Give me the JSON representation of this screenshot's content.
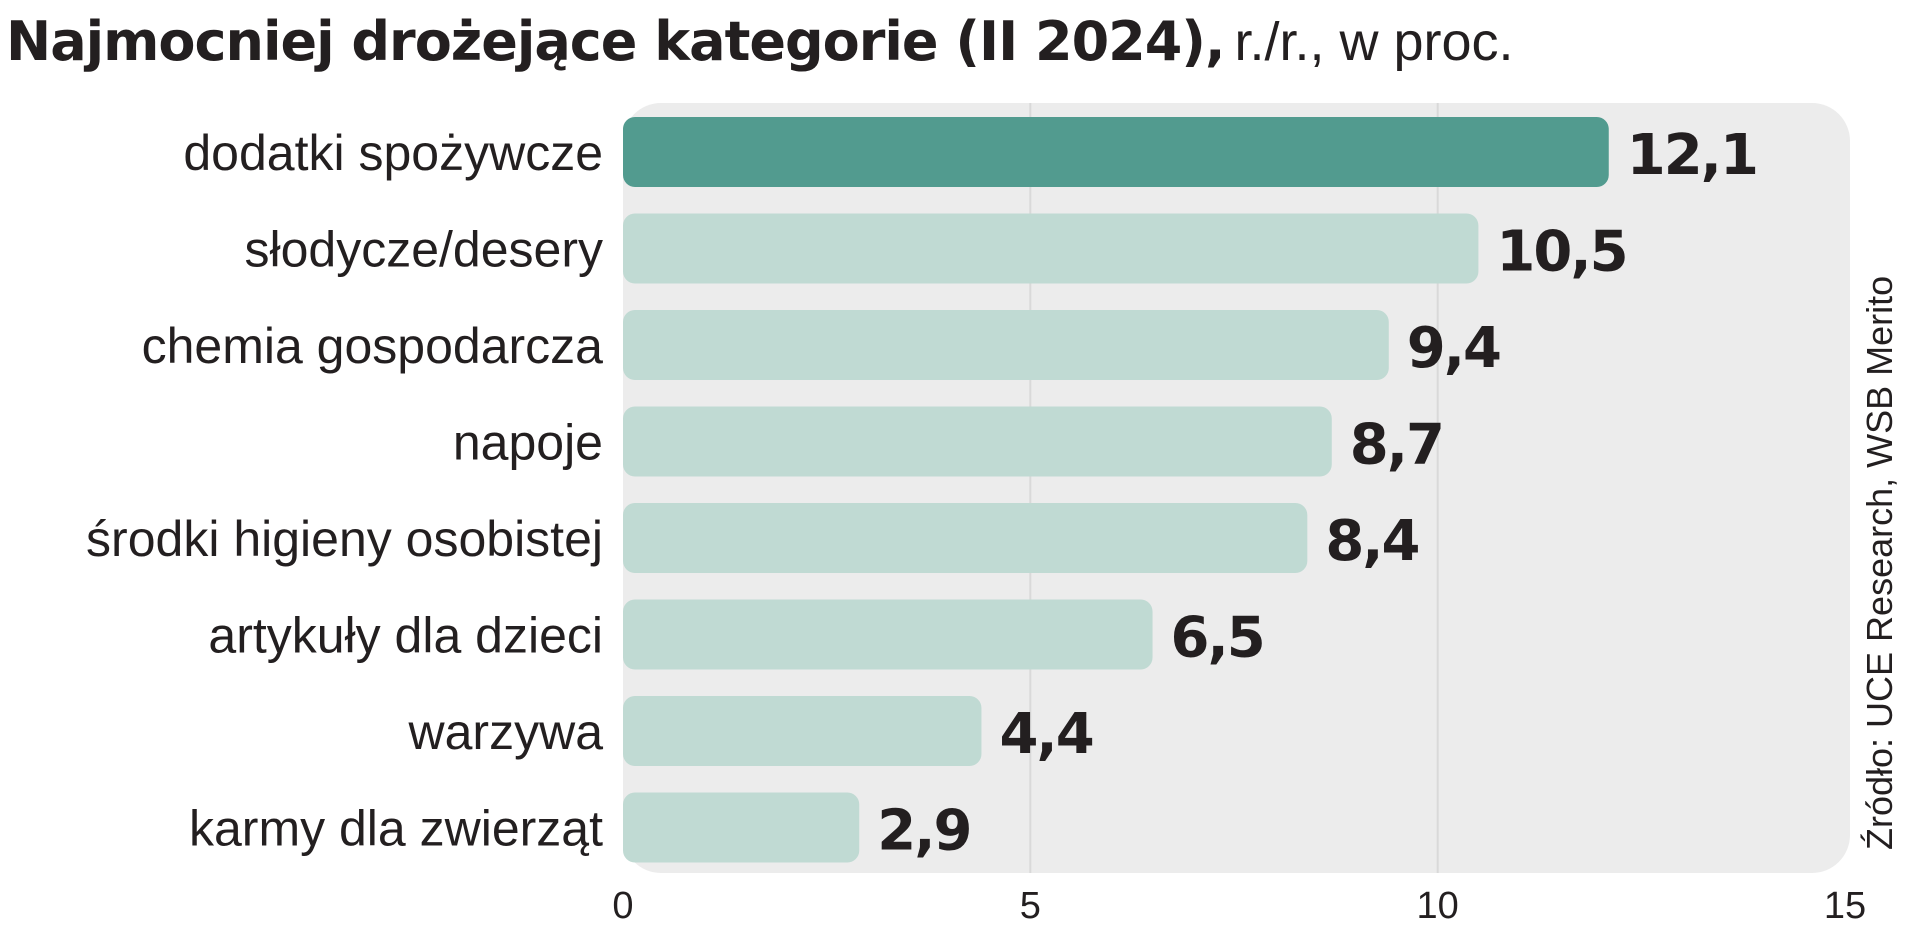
{
  "title": {
    "bold": "Najmocniej drożejące kategorie (II 2024),",
    "light": "r./r., w proc."
  },
  "source": "Źródło: UCE Research, WSB Merito",
  "colors": {
    "highlight": "#529b8f",
    "bar": "#c0dad3",
    "panel": "#ececec",
    "grid": "#d9d9d9",
    "text": "#231f20"
  },
  "chart_data": {
    "type": "bar",
    "orientation": "horizontal",
    "categories": [
      "dodatki spożywcze",
      "słodycze/desery",
      "chemia gospodarcza",
      "napoje",
      "środki higieny osobistej",
      "artykuły dla dzieci",
      "warzywa",
      "karmy dla zwierząt"
    ],
    "values": [
      12.1,
      10.5,
      9.4,
      8.7,
      8.4,
      6.5,
      4.4,
      2.9
    ],
    "value_labels": [
      "12,1",
      "10,5",
      "9,4",
      "8,7",
      "8,4",
      "6,5",
      "4,4",
      "2,9"
    ],
    "highlight_index": 0,
    "xlim": [
      0,
      15
    ],
    "xticks": [
      0,
      5,
      10,
      15
    ],
    "xtick_labels": [
      "0",
      "5",
      "10",
      "15"
    ],
    "grid": true,
    "legend": "none"
  }
}
